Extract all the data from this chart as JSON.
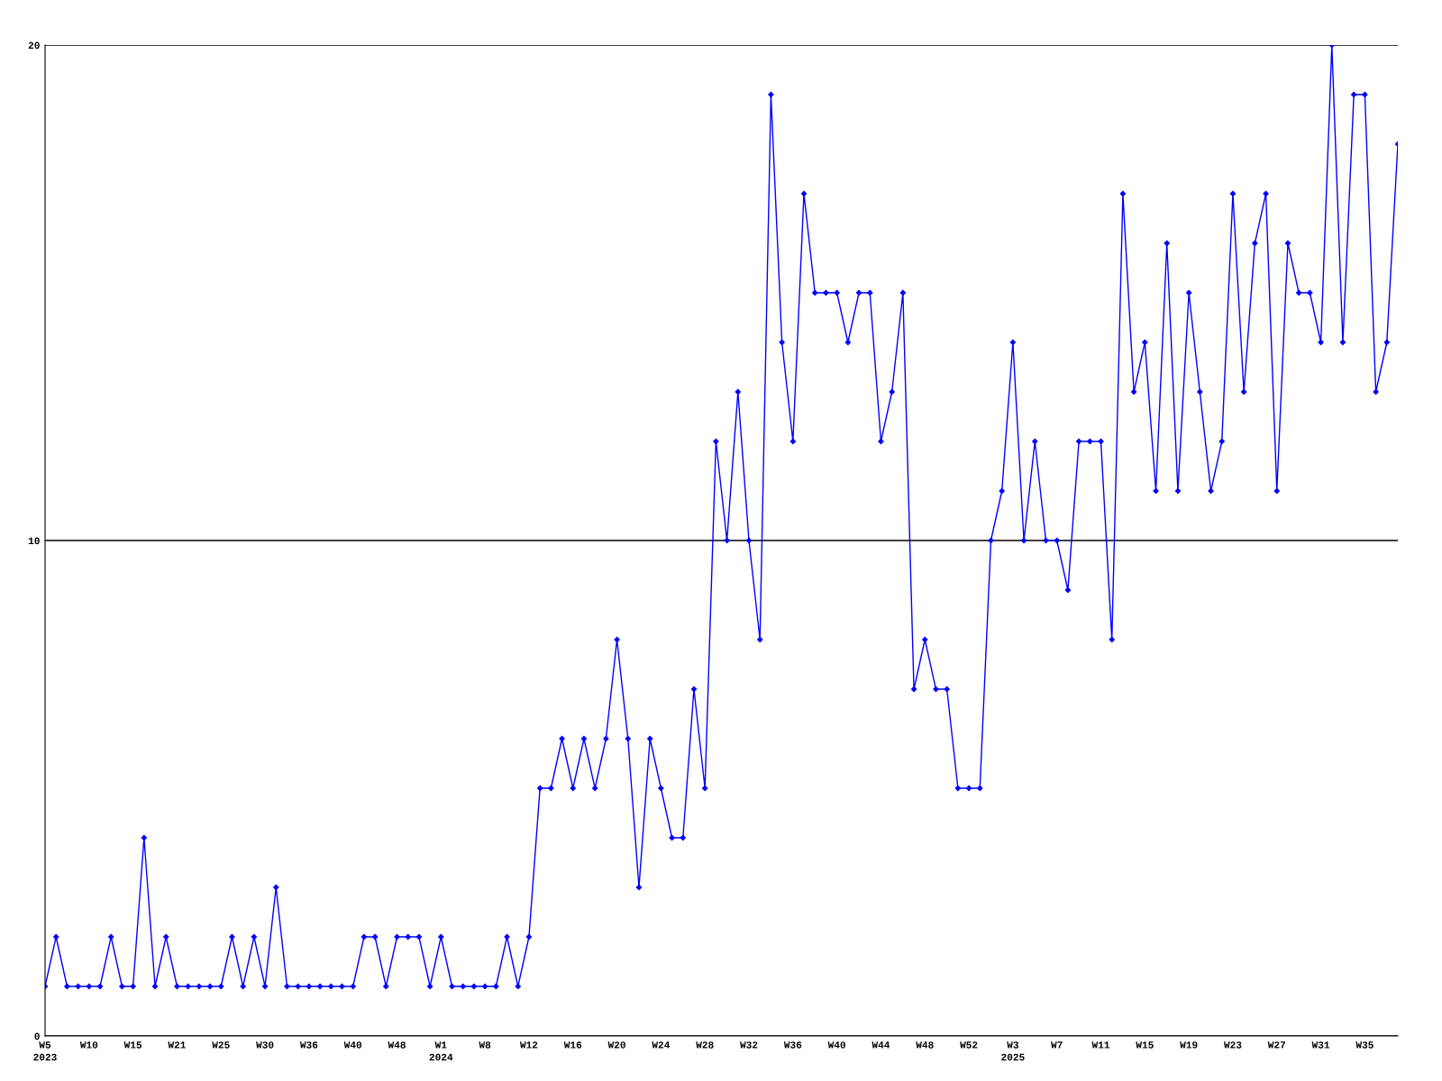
{
  "chart_data": {
    "type": "line",
    "categories": [
      "W5\n2023",
      null,
      null,
      null,
      "W10",
      null,
      null,
      null,
      "W15",
      null,
      null,
      null,
      "W21",
      null,
      null,
      null,
      "W25",
      null,
      null,
      null,
      "W30",
      null,
      null,
      null,
      "W36",
      null,
      null,
      null,
      "W40",
      null,
      null,
      null,
      "W48",
      null,
      null,
      null,
      "W1\n2024",
      null,
      null,
      null,
      "W8",
      null,
      null,
      null,
      "W12",
      null,
      null,
      null,
      "W16",
      null,
      null,
      null,
      "W20",
      null,
      null,
      null,
      "W24",
      null,
      null,
      null,
      "W28",
      null,
      null,
      null,
      "W32",
      null,
      null,
      null,
      "W36",
      null,
      null,
      null,
      "W40",
      null,
      null,
      null,
      "W44",
      null,
      null,
      null,
      "W48",
      null,
      null,
      null,
      "W52",
      null,
      null,
      null,
      "W3\n2025",
      null,
      null,
      null,
      "W7",
      null,
      null,
      null,
      "W11",
      null,
      null,
      null,
      "W15",
      null,
      null,
      null,
      "W19",
      null,
      null,
      null,
      "W23",
      null,
      null,
      null,
      "W27",
      null,
      null,
      null,
      "W31",
      null,
      null,
      null,
      "W35",
      null,
      null,
      null
    ],
    "series": [
      {
        "color": "#0000ff",
        "values": [
          1,
          2,
          1,
          1,
          1,
          1,
          2,
          1,
          1,
          4,
          1,
          2,
          1,
          1,
          1,
          1,
          1,
          2,
          1,
          2,
          1,
          3,
          1,
          1,
          1,
          1,
          1,
          1,
          1,
          2,
          2,
          1,
          2,
          2,
          2,
          1,
          2,
          1,
          1,
          1,
          1,
          1,
          2,
          1,
          2,
          5,
          5,
          6,
          5,
          6,
          5,
          6,
          8,
          6,
          3,
          6,
          5,
          4,
          4,
          7,
          5,
          12,
          10,
          13,
          10,
          8,
          19,
          14,
          12,
          17,
          15,
          15,
          15,
          14,
          15,
          15,
          12,
          13,
          15,
          7,
          8,
          7,
          7,
          5,
          5,
          5,
          10,
          11,
          14,
          10,
          12,
          10,
          10,
          9,
          12,
          12,
          12,
          8,
          17,
          13,
          14,
          11,
          16,
          11,
          15,
          13,
          11,
          12,
          17,
          13,
          16,
          17,
          11,
          16,
          15,
          15,
          14,
          20,
          14,
          19,
          19,
          13,
          14,
          18
        ]
      }
    ],
    "ylim": [
      0,
      20
    ],
    "yticks": [
      0,
      10,
      20
    ],
    "grid": "y",
    "marker": "diamond",
    "line_style": "solid"
  }
}
